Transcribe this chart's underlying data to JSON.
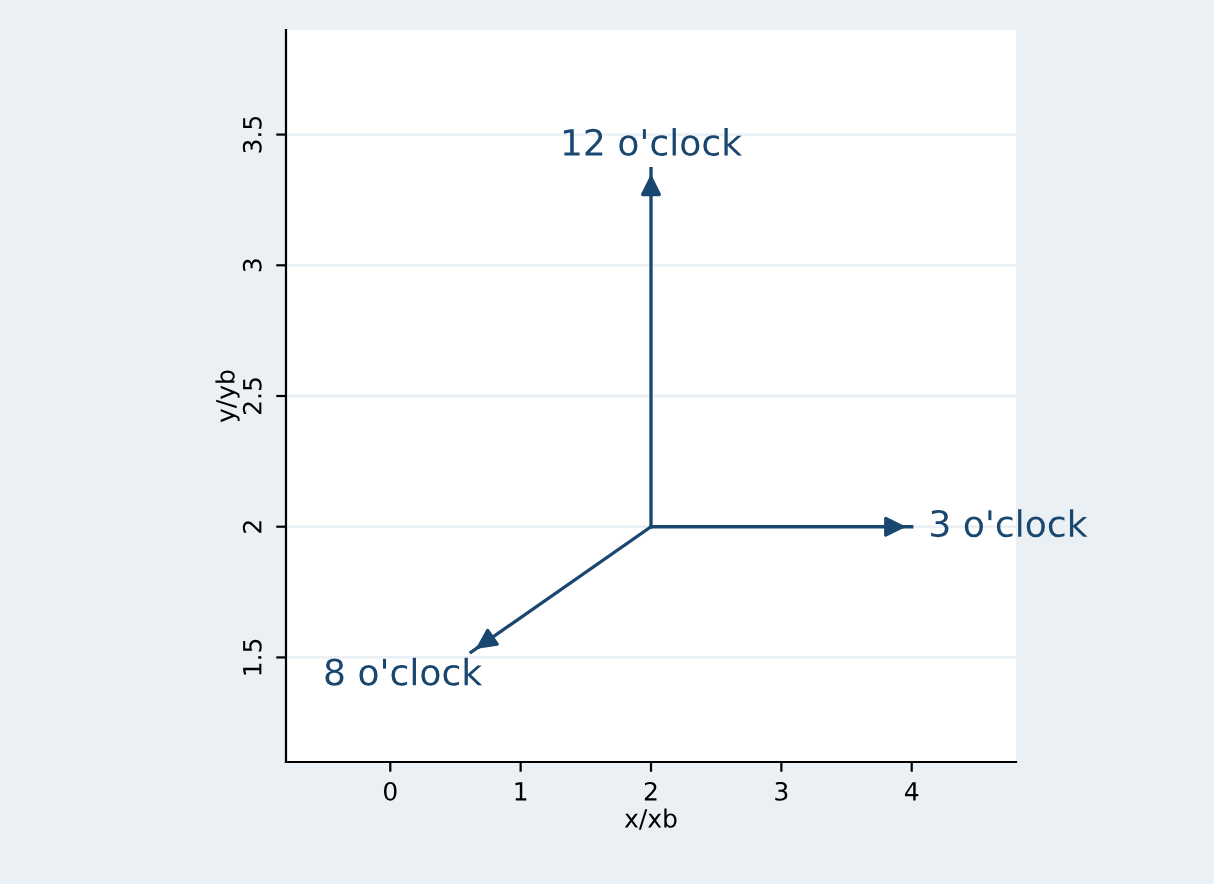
{
  "chart_data": {
    "type": "line",
    "xlabel": "x/xb",
    "ylabel": "y/yb",
    "xlim": [
      -0.8,
      4.8
    ],
    "ylim": [
      1.1,
      3.9
    ],
    "xticks": [
      0,
      1,
      2,
      3,
      4
    ],
    "yticks": [
      1.5,
      2,
      2.5,
      3,
      3.5
    ],
    "grid": "y",
    "marker": "none",
    "line_style": "solid",
    "series": [
      {
        "color": "#1a476f",
        "x": [
          2,
          2
        ],
        "values": [
          2,
          3.37
        ]
      },
      {
        "color": "#1a476f",
        "x": [
          2,
          4
        ],
        "values": [
          2,
          2
        ]
      },
      {
        "color": "#1a476f",
        "x": [
          2,
          0.62
        ],
        "values": [
          2,
          1.52
        ]
      }
    ],
    "annotations": [
      {
        "text": "12 o'clock",
        "x": 2,
        "y": 3.37
      },
      {
        "text": "3 o'clock",
        "x": 4,
        "y": 2
      },
      {
        "text": "8 o'clock",
        "x": 0.62,
        "y": 1.52
      }
    ]
  }
}
